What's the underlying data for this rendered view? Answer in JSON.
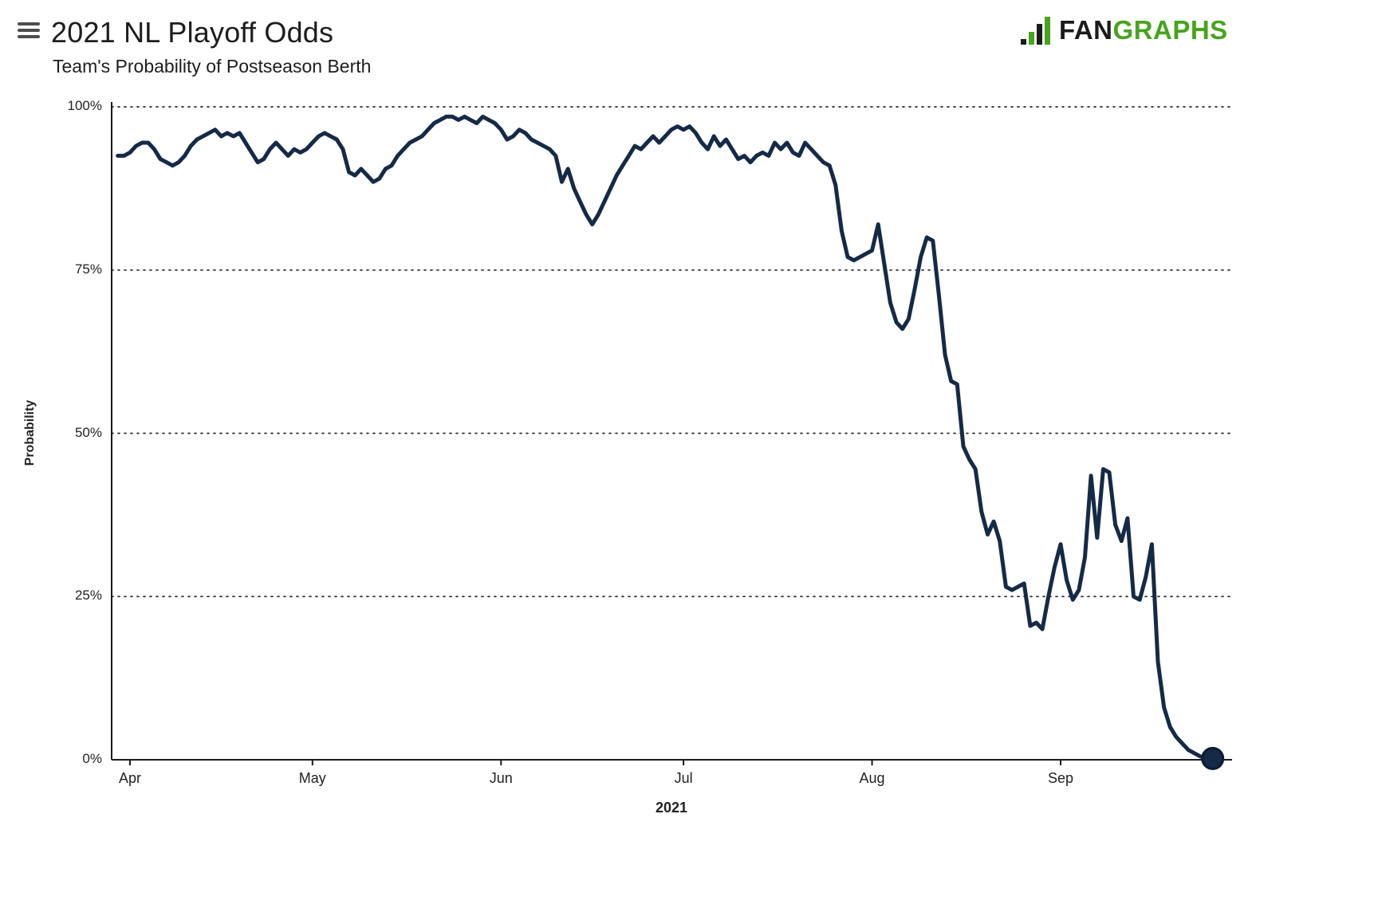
{
  "header": {
    "title": "2021 NL Playoff Odds",
    "subtitle": "Team's Probability of Postseason Berth",
    "logo_fan": "FAN",
    "logo_graphs": "GRAPHS",
    "logo_green": "#47a41d",
    "logo_dark": "#1b1b1b"
  },
  "chart_data": {
    "type": "line",
    "title": "2021 NL Playoff Odds",
    "subtitle": "Team's Probability of Postseason Berth",
    "xlabel": "2021",
    "ylabel": "Probability",
    "ylim": [
      0,
      100
    ],
    "grid": "horizontal-dotted",
    "legend": "none",
    "line_color": "#152a47",
    "marker_color": "#152a47",
    "y_ticks": [
      {
        "label": "0%",
        "value": 0
      },
      {
        "label": "25%",
        "value": 25
      },
      {
        "label": "50%",
        "value": 50
      },
      {
        "label": "75%",
        "value": 75
      },
      {
        "label": "100%",
        "value": 100
      }
    ],
    "x_ticks": [
      {
        "label": "Apr",
        "date": "04-01"
      },
      {
        "label": "May",
        "date": "05-01"
      },
      {
        "label": "Jun",
        "date": "06-01"
      },
      {
        "label": "Jul",
        "date": "07-01"
      },
      {
        "label": "Aug",
        "date": "08-01"
      },
      {
        "label": "Sep",
        "date": "09-01"
      }
    ],
    "series": [
      {
        "name": "Probability of postseason berth (%)",
        "points": [
          [
            "03-30",
            92.5
          ],
          [
            "03-31",
            92.5
          ],
          [
            "04-01",
            93
          ],
          [
            "04-02",
            94
          ],
          [
            "04-03",
            94.5
          ],
          [
            "04-04",
            94.5
          ],
          [
            "04-05",
            93.5
          ],
          [
            "04-06",
            92
          ],
          [
            "04-07",
            91.5
          ],
          [
            "04-08",
            91
          ],
          [
            "04-09",
            91.5
          ],
          [
            "04-10",
            92.5
          ],
          [
            "04-11",
            94
          ],
          [
            "04-12",
            95
          ],
          [
            "04-13",
            95.5
          ],
          [
            "04-14",
            96
          ],
          [
            "04-15",
            96.5
          ],
          [
            "04-16",
            95.5
          ],
          [
            "04-17",
            96
          ],
          [
            "04-18",
            95.5
          ],
          [
            "04-19",
            96
          ],
          [
            "04-20",
            94.5
          ],
          [
            "04-21",
            93
          ],
          [
            "04-22",
            91.5
          ],
          [
            "04-23",
            92
          ],
          [
            "04-24",
            93.5
          ],
          [
            "04-25",
            94.5
          ],
          [
            "04-26",
            93.5
          ],
          [
            "04-27",
            92.5
          ],
          [
            "04-28",
            93.5
          ],
          [
            "04-29",
            93
          ],
          [
            "04-30",
            93.5
          ],
          [
            "05-01",
            94.5
          ],
          [
            "05-02",
            95.5
          ],
          [
            "05-03",
            96
          ],
          [
            "05-04",
            95.5
          ],
          [
            "05-05",
            95
          ],
          [
            "05-06",
            93.5
          ],
          [
            "05-07",
            90
          ],
          [
            "05-08",
            89.5
          ],
          [
            "05-09",
            90.5
          ],
          [
            "05-10",
            89.5
          ],
          [
            "05-11",
            88.5
          ],
          [
            "05-12",
            89
          ],
          [
            "05-13",
            90.5
          ],
          [
            "05-14",
            91
          ],
          [
            "05-15",
            92.5
          ],
          [
            "05-16",
            93.5
          ],
          [
            "05-17",
            94.5
          ],
          [
            "05-18",
            95
          ],
          [
            "05-19",
            95.5
          ],
          [
            "05-20",
            96.5
          ],
          [
            "05-21",
            97.5
          ],
          [
            "05-22",
            98
          ],
          [
            "05-23",
            98.5
          ],
          [
            "05-24",
            98.5
          ],
          [
            "05-25",
            98
          ],
          [
            "05-26",
            98.5
          ],
          [
            "05-27",
            98
          ],
          [
            "05-28",
            97.5
          ],
          [
            "05-29",
            98.5
          ],
          [
            "05-30",
            98
          ],
          [
            "05-31",
            97.5
          ],
          [
            "06-01",
            96.5
          ],
          [
            "06-02",
            95
          ],
          [
            "06-03",
            95.5
          ],
          [
            "06-04",
            96.5
          ],
          [
            "06-05",
            96
          ],
          [
            "06-06",
            95
          ],
          [
            "06-07",
            94.5
          ],
          [
            "06-08",
            94
          ],
          [
            "06-09",
            93.5
          ],
          [
            "06-10",
            92.5
          ],
          [
            "06-11",
            88.5
          ],
          [
            "06-12",
            90.5
          ],
          [
            "06-13",
            87.5
          ],
          [
            "06-14",
            85.5
          ],
          [
            "06-15",
            83.5
          ],
          [
            "06-16",
            82
          ],
          [
            "06-17",
            83.5
          ],
          [
            "06-18",
            85.5
          ],
          [
            "06-19",
            87.5
          ],
          [
            "06-20",
            89.5
          ],
          [
            "06-21",
            91
          ],
          [
            "06-22",
            92.5
          ],
          [
            "06-23",
            94
          ],
          [
            "06-24",
            93.5
          ],
          [
            "06-25",
            94.5
          ],
          [
            "06-26",
            95.5
          ],
          [
            "06-27",
            94.5
          ],
          [
            "06-28",
            95.5
          ],
          [
            "06-29",
            96.5
          ],
          [
            "06-30",
            97
          ],
          [
            "07-01",
            96.5
          ],
          [
            "07-02",
            97
          ],
          [
            "07-03",
            96
          ],
          [
            "07-04",
            94.5
          ],
          [
            "07-05",
            93.5
          ],
          [
            "07-06",
            95.5
          ],
          [
            "07-07",
            94
          ],
          [
            "07-08",
            95
          ],
          [
            "07-09",
            93.5
          ],
          [
            "07-10",
            92
          ],
          [
            "07-11",
            92.5
          ],
          [
            "07-12",
            91.5
          ],
          [
            "07-13",
            92.5
          ],
          [
            "07-14",
            93
          ],
          [
            "07-15",
            92.5
          ],
          [
            "07-16",
            94.5
          ],
          [
            "07-17",
            93.5
          ],
          [
            "07-18",
            94.5
          ],
          [
            "07-19",
            93
          ],
          [
            "07-20",
            92.5
          ],
          [
            "07-21",
            94.5
          ],
          [
            "07-22",
            93.5
          ],
          [
            "07-23",
            92.5
          ],
          [
            "07-24",
            91.5
          ],
          [
            "07-25",
            91
          ],
          [
            "07-26",
            88
          ],
          [
            "07-27",
            81
          ],
          [
            "07-28",
            77
          ],
          [
            "07-29",
            76.5
          ],
          [
            "07-30",
            77
          ],
          [
            "07-31",
            77.5
          ],
          [
            "08-01",
            78
          ],
          [
            "08-02",
            82
          ],
          [
            "08-03",
            76
          ],
          [
            "08-04",
            70
          ],
          [
            "08-05",
            67
          ],
          [
            "08-06",
            66
          ],
          [
            "08-07",
            67.5
          ],
          [
            "08-08",
            72
          ],
          [
            "08-09",
            77
          ],
          [
            "08-10",
            80
          ],
          [
            "08-11",
            79.5
          ],
          [
            "08-12",
            71
          ],
          [
            "08-13",
            62
          ],
          [
            "08-14",
            58
          ],
          [
            "08-15",
            57.5
          ],
          [
            "08-16",
            48
          ],
          [
            "08-17",
            46
          ],
          [
            "08-18",
            44.5
          ],
          [
            "08-19",
            38
          ],
          [
            "08-20",
            34.5
          ],
          [
            "08-21",
            36.5
          ],
          [
            "08-22",
            33.5
          ],
          [
            "08-23",
            26.5
          ],
          [
            "08-24",
            26
          ],
          [
            "08-25",
            26.5
          ],
          [
            "08-26",
            27
          ],
          [
            "08-27",
            20.5
          ],
          [
            "08-28",
            21
          ],
          [
            "08-29",
            20
          ],
          [
            "08-30",
            25
          ],
          [
            "08-31",
            29.5
          ],
          [
            "09-01",
            33
          ],
          [
            "09-02",
            27.5
          ],
          [
            "09-03",
            24.5
          ],
          [
            "09-04",
            26
          ],
          [
            "09-05",
            31
          ],
          [
            "09-06",
            43.5
          ],
          [
            "09-07",
            34
          ],
          [
            "09-08",
            44.5
          ],
          [
            "09-09",
            44
          ],
          [
            "09-10",
            36
          ],
          [
            "09-11",
            33.5
          ],
          [
            "09-12",
            37
          ],
          [
            "09-13",
            25
          ],
          [
            "09-14",
            24.5
          ],
          [
            "09-15",
            28
          ],
          [
            "09-16",
            33
          ],
          [
            "09-17",
            15
          ],
          [
            "09-18",
            8
          ],
          [
            "09-19",
            5
          ],
          [
            "09-20",
            3.5
          ],
          [
            "09-21",
            2.5
          ],
          [
            "09-22",
            1.5
          ],
          [
            "09-23",
            1
          ],
          [
            "09-24",
            0.5
          ],
          [
            "09-25",
            0.3
          ],
          [
            "09-26",
            0.2
          ]
        ]
      }
    ]
  }
}
